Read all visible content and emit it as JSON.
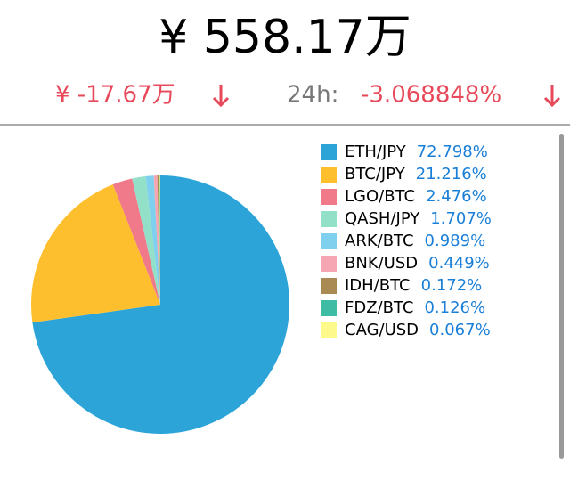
{
  "header": {
    "total": "¥ 558.17万",
    "change": "¥ -17.67万",
    "period_label": "24h:",
    "period_change": "-3.068848%"
  },
  "chart_data": {
    "type": "pie",
    "categories": [
      "ETH/JPY",
      "BTC/JPY",
      "LGO/BTC",
      "QASH/JPY",
      "ARK/BTC",
      "BNK/USD",
      "IDH/BTC",
      "FDZ/BTC",
      "CAG/USD"
    ],
    "values": [
      72.798,
      21.216,
      2.476,
      1.707,
      0.989,
      0.449,
      0.172,
      0.126,
      0.067
    ],
    "value_labels": [
      "72.798%",
      "21.216%",
      "2.476%",
      "1.707%",
      "0.989%",
      "0.449%",
      "0.172%",
      "0.126%",
      "0.067%"
    ],
    "colors": [
      "#2ca4d8",
      "#fdbf2d",
      "#f07a8a",
      "#93e0c8",
      "#7fd0ee",
      "#f6a5b2",
      "#a88a52",
      "#3fbda4",
      "#fdf98a"
    ]
  }
}
